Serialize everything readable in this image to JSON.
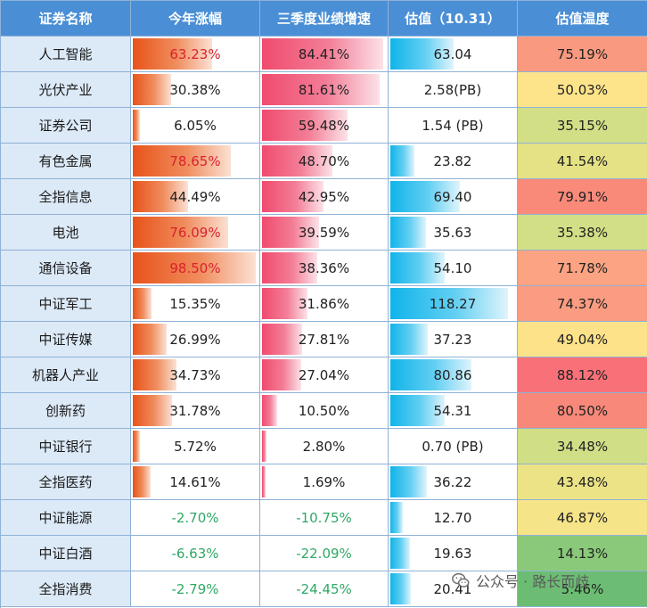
{
  "headers": [
    "证券名称",
    "今年涨幅",
    "三季度业绩增速",
    "估值（10.31）",
    "估值温度"
  ],
  "rows": [
    {
      "name": "人工智能",
      "ytd": "63.23%",
      "ytd_v": 63.23,
      "ytd_highlight": true,
      "q3": "84.41%",
      "q3_v": 84.41,
      "val": "63.04",
      "val_v": 63.04,
      "temp": "75.19%",
      "temp_color": "#f99a80"
    },
    {
      "name": "光伏产业",
      "ytd": "30.38%",
      "ytd_v": 30.38,
      "ytd_highlight": false,
      "q3": "81.61%",
      "q3_v": 81.61,
      "val": "2.58(PB)",
      "val_v": 0,
      "temp": "50.03%",
      "temp_color": "#fde38a"
    },
    {
      "name": "证券公司",
      "ytd": "6.05%",
      "ytd_v": 6.05,
      "ytd_highlight": false,
      "q3": "59.48%",
      "q3_v": 59.48,
      "val": "1.54 (PB)",
      "val_v": 0,
      "temp": "35.15%",
      "temp_color": "#d2df86"
    },
    {
      "name": "有色金属",
      "ytd": "78.65%",
      "ytd_v": 78.65,
      "ytd_highlight": true,
      "q3": "48.70%",
      "q3_v": 48.7,
      "val": "23.82",
      "val_v": 23.82,
      "temp": "41.54%",
      "temp_color": "#e5e285"
    },
    {
      "name": "全指信息",
      "ytd": "44.49%",
      "ytd_v": 44.49,
      "ytd_highlight": false,
      "q3": "42.95%",
      "q3_v": 42.95,
      "val": "69.40",
      "val_v": 69.4,
      "temp": "79.91%",
      "temp_color": "#f98a7a"
    },
    {
      "name": "电池",
      "ytd": "76.09%",
      "ytd_v": 76.09,
      "ytd_highlight": true,
      "q3": "39.59%",
      "q3_v": 39.59,
      "val": "35.63",
      "val_v": 35.63,
      "temp": "35.38%",
      "temp_color": "#d3df86"
    },
    {
      "name": "通信设备",
      "ytd": "98.50%",
      "ytd_v": 98.5,
      "ytd_highlight": true,
      "q3": "38.36%",
      "q3_v": 38.36,
      "val": "54.10",
      "val_v": 54.1,
      "temp": "71.78%",
      "temp_color": "#fba382"
    },
    {
      "name": "中证军工",
      "ytd": "15.35%",
      "ytd_v": 15.35,
      "ytd_highlight": false,
      "q3": "31.86%",
      "q3_v": 31.86,
      "val": "118.27",
      "val_v": 118.27,
      "temp": "74.37%",
      "temp_color": "#fa9c81"
    },
    {
      "name": "中证传媒",
      "ytd": "26.99%",
      "ytd_v": 26.99,
      "ytd_highlight": false,
      "q3": "27.81%",
      "q3_v": 27.81,
      "val": "37.23",
      "val_v": 37.23,
      "temp": "49.04%",
      "temp_color": "#fde28a"
    },
    {
      "name": "机器人产业",
      "ytd": "34.73%",
      "ytd_v": 34.73,
      "ytd_highlight": false,
      "q3": "27.04%",
      "q3_v": 27.04,
      "val": "80.86",
      "val_v": 80.86,
      "temp": "88.12%",
      "temp_color": "#f87078"
    },
    {
      "name": "创新药",
      "ytd": "31.78%",
      "ytd_v": 31.78,
      "ytd_highlight": false,
      "q3": "10.50%",
      "q3_v": 10.5,
      "val": "54.31",
      "val_v": 54.31,
      "temp": "80.50%",
      "temp_color": "#f88879"
    },
    {
      "name": "中证银行",
      "ytd": "5.72%",
      "ytd_v": 5.72,
      "ytd_highlight": false,
      "q3": "2.80%",
      "q3_v": 2.8,
      "val": "0.70 (PB)",
      "val_v": 0,
      "temp": "34.48%",
      "temp_color": "#d0de86"
    },
    {
      "name": "全指医药",
      "ytd": "14.61%",
      "ytd_v": 14.61,
      "ytd_highlight": false,
      "q3": "1.69%",
      "q3_v": 1.69,
      "val": "36.22",
      "val_v": 36.22,
      "temp": "43.48%",
      "temp_color": "#ebe386"
    },
    {
      "name": "中证能源",
      "ytd": "-2.70%",
      "ytd_v": -2.7,
      "ytd_highlight": false,
      "q3": "-10.75%",
      "q3_v": -10.75,
      "val": "12.70",
      "val_v": 12.7,
      "temp": "46.87%",
      "temp_color": "#f6e488"
    },
    {
      "name": "中证白酒",
      "ytd": "-6.63%",
      "ytd_v": -6.63,
      "ytd_highlight": false,
      "q3": "-22.09%",
      "q3_v": -22.09,
      "val": "19.63",
      "val_v": 19.63,
      "temp": "14.13%",
      "temp_color": "#8ac97a"
    },
    {
      "name": "全指消费",
      "ytd": "-2.79%",
      "ytd_v": -2.79,
      "ytd_highlight": false,
      "q3": "-24.45%",
      "q3_v": -24.45,
      "val": "20.41",
      "val_v": 20.41,
      "temp": "5.46%",
      "temp_color": "#6cbd73"
    }
  ],
  "scales": {
    "ytd_max": 100,
    "q3_max": 86,
    "val_max": 125
  },
  "colors": {
    "header": "#4a8fd6",
    "name_bg": "#dce9f7",
    "negative": "#2fa865",
    "highlight": "#d9232d"
  },
  "watermark": {
    "text": "公众号 · 路长而歧",
    "icon": "wechat-icon"
  }
}
